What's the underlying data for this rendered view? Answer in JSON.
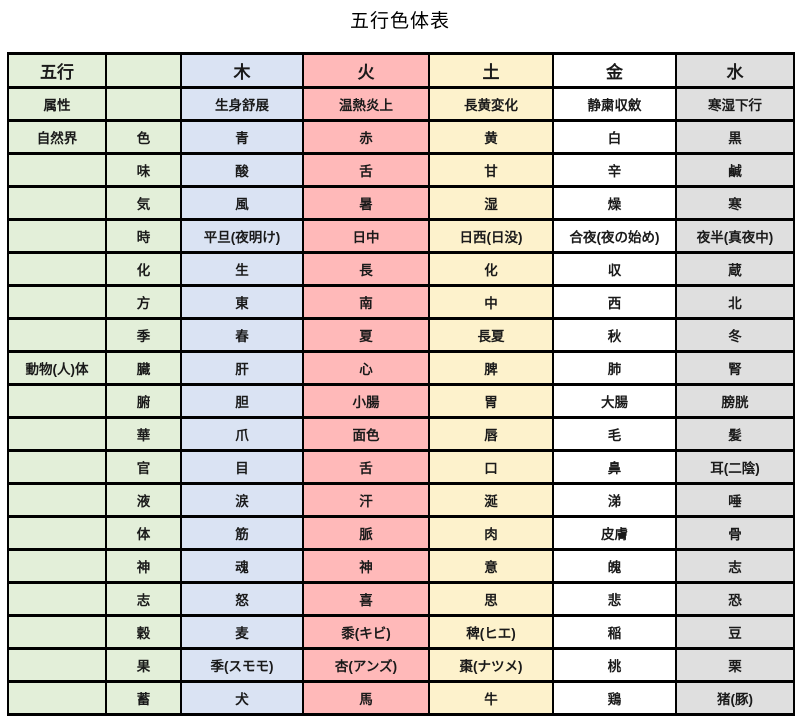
{
  "title": "五行色体表",
  "colors": {
    "label_bg": "#e3efd9",
    "wood_bg": "#dae3f3",
    "fire_bg": "#ffb9b9",
    "earth_bg": "#fdf2cc",
    "metal_bg": "#ffffff",
    "water_bg": "#dfdfdf",
    "border": "#000000"
  },
  "table": {
    "columns": [
      "五行",
      "",
      "木",
      "火",
      "土",
      "金",
      "水"
    ],
    "rows": [
      {
        "cat": "属性",
        "sub": "",
        "cells": [
          "生身舒展",
          "温熱炎上",
          "長黄変化",
          "静粛収斂",
          "寒湿下行"
        ]
      },
      {
        "cat": "自然界",
        "sub": "色",
        "cells": [
          "青",
          "赤",
          "黄",
          "白",
          "黒"
        ]
      },
      {
        "cat": "",
        "sub": "味",
        "cells": [
          "酸",
          "舌",
          "甘",
          "辛",
          "鹹"
        ]
      },
      {
        "cat": "",
        "sub": "気",
        "cells": [
          "風",
          "暑",
          "湿",
          "燥",
          "寒"
        ]
      },
      {
        "cat": "",
        "sub": "時",
        "cells": [
          "平旦(夜明け)",
          "日中",
          "日西(日没)",
          "合夜(夜の始め)",
          "夜半(真夜中)"
        ]
      },
      {
        "cat": "",
        "sub": "化",
        "cells": [
          "生",
          "長",
          "化",
          "収",
          "蔵"
        ]
      },
      {
        "cat": "",
        "sub": "方",
        "cells": [
          "東",
          "南",
          "中",
          "西",
          "北"
        ]
      },
      {
        "cat": "",
        "sub": "季",
        "cells": [
          "春",
          "夏",
          "長夏",
          "秋",
          "冬"
        ]
      },
      {
        "cat": "動物(人)体",
        "sub": "臓",
        "cells": [
          "肝",
          "心",
          "脾",
          "肺",
          "腎"
        ]
      },
      {
        "cat": "",
        "sub": "腑",
        "cells": [
          "胆",
          "小腸",
          "胃",
          "大腸",
          "膀胱"
        ]
      },
      {
        "cat": "",
        "sub": "華",
        "cells": [
          "爪",
          "面色",
          "唇",
          "毛",
          "髪"
        ]
      },
      {
        "cat": "",
        "sub": "官",
        "cells": [
          "目",
          "舌",
          "口",
          "鼻",
          "耳(二陰)"
        ]
      },
      {
        "cat": "",
        "sub": "液",
        "cells": [
          "涙",
          "汗",
          "涎",
          "涕",
          "唾"
        ]
      },
      {
        "cat": "",
        "sub": "体",
        "cells": [
          "筋",
          "脈",
          "肉",
          "皮膚",
          "骨"
        ]
      },
      {
        "cat": "",
        "sub": "神",
        "cells": [
          "魂",
          "神",
          "意",
          "魄",
          "志"
        ]
      },
      {
        "cat": "",
        "sub": "志",
        "cells": [
          "怒",
          "喜",
          "思",
          "悲",
          "恐"
        ]
      },
      {
        "cat": "",
        "sub": "穀",
        "cells": [
          "麦",
          "黍(キビ)",
          "稗(ヒエ)",
          "稲",
          "豆"
        ]
      },
      {
        "cat": "",
        "sub": "果",
        "cells": [
          "季(スモモ)",
          "杏(アンズ)",
          "棗(ナツメ)",
          "桃",
          "栗"
        ]
      },
      {
        "cat": "",
        "sub": "蓄",
        "cells": [
          "犬",
          "馬",
          "牛",
          "鶏",
          "猪(豚)"
        ]
      }
    ]
  }
}
